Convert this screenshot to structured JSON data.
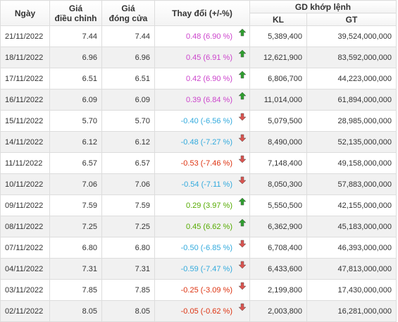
{
  "headers": {
    "date": "Ngày",
    "adjusted_price_l1": "Giá",
    "adjusted_price_l2": "điều chỉnh",
    "close_price_l1": "Giá",
    "close_price_l2": "đóng cửa",
    "change": "Thay đổi (+/-%)",
    "matched_group": "GD khớp lệnh",
    "volume": "KL",
    "value": "GT"
  },
  "colors": {
    "ceiling_up": "#cc44cc",
    "up": "#55aa00",
    "floor_down": "#33aadd",
    "down": "#dd3311",
    "arrow_up": "#2e9e2e",
    "arrow_down": "#d9534f"
  },
  "rows": [
    {
      "date": "21/11/2022",
      "adj": "7.44",
      "close": "7.44",
      "change": "0.48 (6.90 %)",
      "trend": "ceiling",
      "kl": "5,389,400",
      "gt": "39,524,000,000",
      "arrow_icon": "arrow-up-icon"
    },
    {
      "date": "18/11/2022",
      "adj": "6.96",
      "close": "6.96",
      "change": "0.45 (6.91 %)",
      "trend": "ceiling",
      "kl": "12,621,900",
      "gt": "83,592,000,000",
      "arrow_icon": "arrow-up-icon"
    },
    {
      "date": "17/11/2022",
      "adj": "6.51",
      "close": "6.51",
      "change": "0.42 (6.90 %)",
      "trend": "ceiling",
      "kl": "6,806,700",
      "gt": "44,223,000,000",
      "arrow_icon": "arrow-up-icon"
    },
    {
      "date": "16/11/2022",
      "adj": "6.09",
      "close": "6.09",
      "change": "0.39 (6.84 %)",
      "trend": "ceiling",
      "kl": "11,014,000",
      "gt": "61,894,000,000",
      "arrow_icon": "arrow-up-icon"
    },
    {
      "date": "15/11/2022",
      "adj": "5.70",
      "close": "5.70",
      "change": "-0.40 (-6.56 %)",
      "trend": "floor",
      "kl": "5,079,500",
      "gt": "28,985,000,000",
      "arrow_icon": "arrow-down-icon"
    },
    {
      "date": "14/11/2022",
      "adj": "6.12",
      "close": "6.12",
      "change": "-0.48 (-7.27 %)",
      "trend": "floor",
      "kl": "8,490,000",
      "gt": "52,135,000,000",
      "arrow_icon": "arrow-down-icon"
    },
    {
      "date": "11/11/2022",
      "adj": "6.57",
      "close": "6.57",
      "change": "-0.53 (-7.46 %)",
      "trend": "down",
      "kl": "7,148,400",
      "gt": "49,158,000,000",
      "arrow_icon": "arrow-down-icon"
    },
    {
      "date": "10/11/2022",
      "adj": "7.06",
      "close": "7.06",
      "change": "-0.54 (-7.11 %)",
      "trend": "floor",
      "kl": "8,050,300",
      "gt": "57,883,000,000",
      "arrow_icon": "arrow-down-icon"
    },
    {
      "date": "09/11/2022",
      "adj": "7.59",
      "close": "7.59",
      "change": "0.29 (3.97 %)",
      "trend": "up",
      "kl": "5,550,500",
      "gt": "42,155,000,000",
      "arrow_icon": "arrow-up-icon"
    },
    {
      "date": "08/11/2022",
      "adj": "7.25",
      "close": "7.25",
      "change": "0.45 (6.62 %)",
      "trend": "up",
      "kl": "6,362,900",
      "gt": "45,183,000,000",
      "arrow_icon": "arrow-up-icon"
    },
    {
      "date": "07/11/2022",
      "adj": "6.80",
      "close": "6.80",
      "change": "-0.50 (-6.85 %)",
      "trend": "floor",
      "kl": "6,708,400",
      "gt": "46,393,000,000",
      "arrow_icon": "arrow-down-icon"
    },
    {
      "date": "04/11/2022",
      "adj": "7.31",
      "close": "7.31",
      "change": "-0.59 (-7.47 %)",
      "trend": "floor",
      "kl": "6,433,600",
      "gt": "47,813,000,000",
      "arrow_icon": "arrow-down-icon"
    },
    {
      "date": "03/11/2022",
      "adj": "7.85",
      "close": "7.85",
      "change": "-0.25 (-3.09 %)",
      "trend": "down",
      "kl": "2,199,800",
      "gt": "17,430,000,000",
      "arrow_icon": "arrow-down-icon"
    },
    {
      "date": "02/11/2022",
      "adj": "8.05",
      "close": "8.05",
      "change": "-0.05 (-0.62 %)",
      "trend": "down",
      "kl": "2,003,800",
      "gt": "16,281,000,000",
      "arrow_icon": "arrow-down-icon"
    }
  ]
}
